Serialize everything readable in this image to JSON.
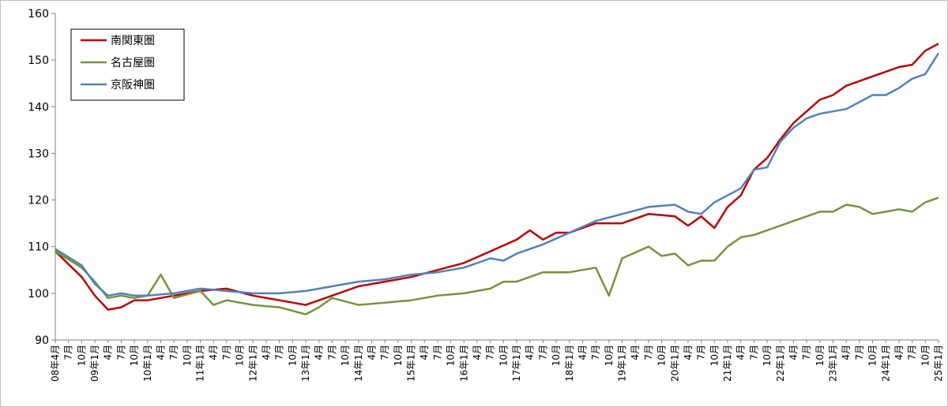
{
  "chart_data": {
    "type": "line",
    "title": "",
    "xlabel": "",
    "ylabel": "",
    "ylim": [
      90,
      160
    ],
    "yticks": [
      90,
      100,
      110,
      120,
      130,
      140,
      150,
      160
    ],
    "grid": false,
    "legend_position": "top-left",
    "start": "2008-04",
    "end": "2025-01",
    "x_tick_labels": [
      "08年4月",
      "7月",
      "10月",
      "09年1月",
      "4月",
      "7月",
      "10月",
      "10年1月",
      "4月",
      "7月",
      "10月",
      "11年1月",
      "4月",
      "7月",
      "10月",
      "12年1月",
      "4月",
      "7月",
      "10月",
      "13年1月",
      "4月",
      "7月",
      "10月",
      "14年1月",
      "4月",
      "7月",
      "10月",
      "15年1月",
      "4月",
      "7月",
      "10月",
      "16年1月",
      "4月",
      "7月",
      "10月",
      "17年1月",
      "4月",
      "7月",
      "10月",
      "18年1月",
      "4月",
      "7月",
      "10月",
      "19年1月",
      "4月",
      "7月",
      "10月",
      "20年1月",
      "4月",
      "7月",
      "10月",
      "21年1月",
      "4月",
      "7月",
      "10月",
      "22年1月",
      "4月",
      "7月",
      "10月",
      "23年1月",
      "4月",
      "7月",
      "10月",
      "24年1月",
      "4月",
      "7月",
      "10月",
      "25年1月"
    ],
    "series": [
      {
        "name": "南関東圏",
        "color": "#c00000",
        "values": [
          {
            "x": "2008-04",
            "y": 109.0
          },
          {
            "x": "2008-10",
            "y": 103.5
          },
          {
            "x": "2009-01",
            "y": 99.5
          },
          {
            "x": "2009-04",
            "y": 96.5
          },
          {
            "x": "2009-07",
            "y": 97.0
          },
          {
            "x": "2009-10",
            "y": 98.5
          },
          {
            "x": "2010-01",
            "y": 98.5
          },
          {
            "x": "2010-07",
            "y": 99.5
          },
          {
            "x": "2011-01",
            "y": 100.5
          },
          {
            "x": "2011-07",
            "y": 101.0
          },
          {
            "x": "2012-01",
            "y": 99.5
          },
          {
            "x": "2012-07",
            "y": 98.5
          },
          {
            "x": "2013-01",
            "y": 97.5
          },
          {
            "x": "2013-07",
            "y": 99.5
          },
          {
            "x": "2014-01",
            "y": 101.5
          },
          {
            "x": "2014-07",
            "y": 102.5
          },
          {
            "x": "2015-01",
            "y": 103.5
          },
          {
            "x": "2015-07",
            "y": 105.0
          },
          {
            "x": "2016-01",
            "y": 106.5
          },
          {
            "x": "2016-07",
            "y": 109.0
          },
          {
            "x": "2017-01",
            "y": 111.5
          },
          {
            "x": "2017-04",
            "y": 113.5
          },
          {
            "x": "2017-07",
            "y": 111.5
          },
          {
            "x": "2017-10",
            "y": 113.0
          },
          {
            "x": "2018-01",
            "y": 113.0
          },
          {
            "x": "2018-07",
            "y": 115.0
          },
          {
            "x": "2019-01",
            "y": 115.0
          },
          {
            "x": "2019-07",
            "y": 117.0
          },
          {
            "x": "2020-01",
            "y": 116.5
          },
          {
            "x": "2020-04",
            "y": 114.5
          },
          {
            "x": "2020-07",
            "y": 116.5
          },
          {
            "x": "2020-10",
            "y": 114.0
          },
          {
            "x": "2021-01",
            "y": 118.5
          },
          {
            "x": "2021-04",
            "y": 121.0
          },
          {
            "x": "2021-07",
            "y": 126.5
          },
          {
            "x": "2021-10",
            "y": 129.0
          },
          {
            "x": "2022-01",
            "y": 133.0
          },
          {
            "x": "2022-04",
            "y": 136.5
          },
          {
            "x": "2022-07",
            "y": 139.0
          },
          {
            "x": "2022-10",
            "y": 141.5
          },
          {
            "x": "2023-01",
            "y": 142.5
          },
          {
            "x": "2023-04",
            "y": 144.5
          },
          {
            "x": "2023-07",
            "y": 145.5
          },
          {
            "x": "2023-10",
            "y": 146.5
          },
          {
            "x": "2024-01",
            "y": 147.5
          },
          {
            "x": "2024-04",
            "y": 148.5
          },
          {
            "x": "2024-07",
            "y": 149.0
          },
          {
            "x": "2024-10",
            "y": 152.0
          },
          {
            "x": "2025-01",
            "y": 153.5
          }
        ]
      },
      {
        "name": "名古屋圏",
        "color": "#77933c",
        "values": [
          {
            "x": "2008-04",
            "y": 109.0
          },
          {
            "x": "2008-10",
            "y": 105.5
          },
          {
            "x": "2009-01",
            "y": 102.5
          },
          {
            "x": "2009-04",
            "y": 99.0
          },
          {
            "x": "2009-07",
            "y": 99.5
          },
          {
            "x": "2009-10",
            "y": 99.0
          },
          {
            "x": "2010-01",
            "y": 99.5
          },
          {
            "x": "2010-04",
            "y": 104.0
          },
          {
            "x": "2010-07",
            "y": 99.0
          },
          {
            "x": "2011-01",
            "y": 100.5
          },
          {
            "x": "2011-04",
            "y": 97.5
          },
          {
            "x": "2011-07",
            "y": 98.5
          },
          {
            "x": "2012-01",
            "y": 97.5
          },
          {
            "x": "2012-07",
            "y": 97.0
          },
          {
            "x": "2013-01",
            "y": 95.5
          },
          {
            "x": "2013-04",
            "y": 97.0
          },
          {
            "x": "2013-07",
            "y": 99.0
          },
          {
            "x": "2014-01",
            "y": 97.5
          },
          {
            "x": "2014-07",
            "y": 98.0
          },
          {
            "x": "2015-01",
            "y": 98.5
          },
          {
            "x": "2015-07",
            "y": 99.5
          },
          {
            "x": "2016-01",
            "y": 100.0
          },
          {
            "x": "2016-07",
            "y": 101.0
          },
          {
            "x": "2016-10",
            "y": 102.5
          },
          {
            "x": "2017-01",
            "y": 102.5
          },
          {
            "x": "2017-07",
            "y": 104.5
          },
          {
            "x": "2018-01",
            "y": 104.5
          },
          {
            "x": "2018-07",
            "y": 105.5
          },
          {
            "x": "2018-10",
            "y": 99.5
          },
          {
            "x": "2019-01",
            "y": 107.5
          },
          {
            "x": "2019-07",
            "y": 110.0
          },
          {
            "x": "2019-10",
            "y": 108.0
          },
          {
            "x": "2020-01",
            "y": 108.5
          },
          {
            "x": "2020-04",
            "y": 106.0
          },
          {
            "x": "2020-07",
            "y": 107.0
          },
          {
            "x": "2020-10",
            "y": 107.0
          },
          {
            "x": "2021-01",
            "y": 110.0
          },
          {
            "x": "2021-04",
            "y": 112.0
          },
          {
            "x": "2021-07",
            "y": 112.5
          },
          {
            "x": "2021-10",
            "y": 113.5
          },
          {
            "x": "2022-01",
            "y": 114.5
          },
          {
            "x": "2022-04",
            "y": 115.5
          },
          {
            "x": "2022-07",
            "y": 116.5
          },
          {
            "x": "2022-10",
            "y": 117.5
          },
          {
            "x": "2023-01",
            "y": 117.5
          },
          {
            "x": "2023-04",
            "y": 119.0
          },
          {
            "x": "2023-07",
            "y": 118.5
          },
          {
            "x": "2023-10",
            "y": 117.0
          },
          {
            "x": "2024-01",
            "y": 117.5
          },
          {
            "x": "2024-04",
            "y": 118.0
          },
          {
            "x": "2024-07",
            "y": 117.5
          },
          {
            "x": "2024-10",
            "y": 119.5
          },
          {
            "x": "2025-01",
            "y": 120.5
          }
        ]
      },
      {
        "name": "京阪神圏",
        "color": "#4f81bd",
        "values": [
          {
            "x": "2008-04",
            "y": 109.5
          },
          {
            "x": "2008-10",
            "y": 106.0
          },
          {
            "x": "2009-01",
            "y": 102.0
          },
          {
            "x": "2009-04",
            "y": 99.5
          },
          {
            "x": "2009-07",
            "y": 100.0
          },
          {
            "x": "2009-10",
            "y": 99.5
          },
          {
            "x": "2010-01",
            "y": 99.5
          },
          {
            "x": "2010-07",
            "y": 100.0
          },
          {
            "x": "2011-01",
            "y": 101.0
          },
          {
            "x": "2011-07",
            "y": 100.5
          },
          {
            "x": "2012-01",
            "y": 100.0
          },
          {
            "x": "2012-07",
            "y": 100.0
          },
          {
            "x": "2013-01",
            "y": 100.5
          },
          {
            "x": "2013-07",
            "y": 101.5
          },
          {
            "x": "2014-01",
            "y": 102.5
          },
          {
            "x": "2014-07",
            "y": 103.0
          },
          {
            "x": "2015-01",
            "y": 104.0
          },
          {
            "x": "2015-07",
            "y": 104.5
          },
          {
            "x": "2016-01",
            "y": 105.5
          },
          {
            "x": "2016-04",
            "y": 106.5
          },
          {
            "x": "2016-07",
            "y": 107.5
          },
          {
            "x": "2016-10",
            "y": 107.0
          },
          {
            "x": "2017-01",
            "y": 108.5
          },
          {
            "x": "2017-07",
            "y": 110.5
          },
          {
            "x": "2018-01",
            "y": 113.0
          },
          {
            "x": "2018-07",
            "y": 115.5
          },
          {
            "x": "2019-01",
            "y": 117.0
          },
          {
            "x": "2019-07",
            "y": 118.5
          },
          {
            "x": "2020-01",
            "y": 119.0
          },
          {
            "x": "2020-04",
            "y": 117.5
          },
          {
            "x": "2020-07",
            "y": 117.0
          },
          {
            "x": "2020-10",
            "y": 119.5
          },
          {
            "x": "2021-01",
            "y": 121.0
          },
          {
            "x": "2021-04",
            "y": 122.5
          },
          {
            "x": "2021-07",
            "y": 126.5
          },
          {
            "x": "2021-10",
            "y": 127.0
          },
          {
            "x": "2022-01",
            "y": 132.5
          },
          {
            "x": "2022-04",
            "y": 135.5
          },
          {
            "x": "2022-07",
            "y": 137.5
          },
          {
            "x": "2022-10",
            "y": 138.5
          },
          {
            "x": "2023-01",
            "y": 139.0
          },
          {
            "x": "2023-04",
            "y": 139.5
          },
          {
            "x": "2023-07",
            "y": 141.0
          },
          {
            "x": "2023-10",
            "y": 142.5
          },
          {
            "x": "2024-01",
            "y": 142.5
          },
          {
            "x": "2024-04",
            "y": 144.0
          },
          {
            "x": "2024-07",
            "y": 146.0
          },
          {
            "x": "2024-10",
            "y": 147.0
          },
          {
            "x": "2025-01",
            "y": 151.5
          }
        ]
      }
    ]
  }
}
